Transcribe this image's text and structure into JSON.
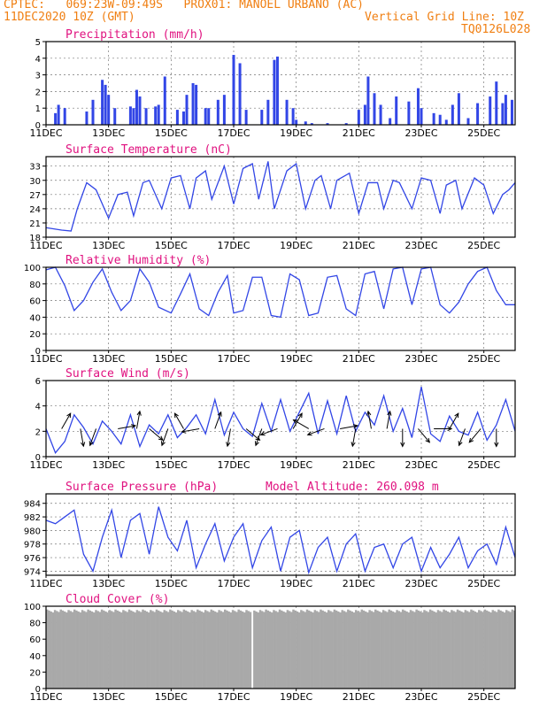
{
  "header": {
    "line1": "CPTEC:   069:23W-09:49S   PROX01: MANOEL URBANO (AC)",
    "line2_left": "11DEC2020 10Z (GMT)",
    "line2_right": "Vertical Grid Line: 10Z",
    "line3_right": "TQ0126L028"
  },
  "colors": {
    "header": "#f07f12",
    "title": "#e0117f",
    "series": "#3246e6",
    "bars": "#3246e6",
    "cloud": "#a9a9a9"
  },
  "x_labels": [
    "11DEC",
    "13DEC",
    "15DEC",
    "17DEC",
    "19DEC",
    "21DEC",
    "23DEC",
    "25DEC"
  ],
  "x_positions_days": [
    0,
    2,
    4,
    6,
    8,
    10,
    12,
    14
  ],
  "x_span_days": 15.0,
  "chart_data": [
    {
      "type": "bar",
      "title": "Precipitation (mm/h)",
      "ylim": [
        0,
        5
      ],
      "yticks": [
        "0",
        "1",
        "2",
        "3",
        "4",
        "5"
      ],
      "x_days": [
        0.3,
        0.4,
        0.6,
        1.3,
        1.5,
        1.8,
        1.9,
        2.0,
        2.2,
        2.7,
        2.8,
        2.9,
        3.0,
        3.2,
        3.5,
        3.6,
        3.8,
        4.2,
        4.4,
        4.5,
        4.7,
        4.8,
        5.1,
        5.2,
        5.5,
        5.7,
        6.0,
        6.2,
        6.4,
        6.9,
        7.1,
        7.3,
        7.4,
        7.7,
        7.9,
        8.0,
        8.3,
        8.5,
        9.0,
        9.6,
        10.0,
        10.2,
        10.3,
        10.5,
        10.7,
        11.0,
        11.2,
        11.6,
        11.9,
        12.0,
        12.4,
        12.6,
        12.8,
        13.0,
        13.2,
        13.5,
        13.8,
        14.2,
        14.4,
        14.6,
        14.7,
        14.9
      ],
      "values": [
        0.7,
        1.2,
        1.0,
        0.8,
        1.5,
        2.7,
        2.4,
        1.8,
        1.0,
        1.1,
        1.0,
        2.1,
        1.7,
        1.0,
        1.1,
        1.2,
        2.9,
        0.9,
        0.8,
        1.8,
        2.5,
        2.4,
        1.0,
        1.0,
        1.5,
        1.8,
        4.2,
        3.7,
        0.9,
        0.9,
        1.5,
        3.9,
        4.1,
        1.5,
        1.0,
        0.3,
        0.2,
        0.1,
        0.1,
        0.1,
        0.9,
        1.2,
        2.9,
        1.9,
        1.2,
        0.4,
        1.7,
        1.4,
        2.2,
        1.0,
        0.7,
        0.6,
        0.3,
        1.2,
        1.9,
        0.4,
        1.3,
        1.7,
        2.6,
        1.3,
        1.8,
        1.5
      ]
    },
    {
      "type": "line",
      "title": "Surface Temperature (nC)",
      "ylim": [
        18,
        35
      ],
      "yticks": [
        "18",
        "21",
        "24",
        "27",
        "30",
        "33"
      ],
      "x_days": [
        0,
        0.5,
        0.8,
        1.0,
        1.3,
        1.6,
        2.0,
        2.3,
        2.6,
        2.8,
        3.1,
        3.3,
        3.7,
        4.0,
        4.3,
        4.6,
        4.8,
        5.1,
        5.3,
        5.7,
        6.0,
        6.3,
        6.6,
        6.8,
        7.1,
        7.3,
        7.7,
        8.0,
        8.3,
        8.6,
        8.8,
        9.1,
        9.3,
        9.7,
        10.0,
        10.3,
        10.6,
        10.8,
        11.1,
        11.3,
        11.7,
        12.0,
        12.3,
        12.6,
        12.8,
        13.1,
        13.3,
        13.7,
        14.0,
        14.3,
        14.6,
        14.8,
        15.0
      ],
      "values": [
        20.0,
        19.5,
        19.3,
        24.0,
        29.5,
        28.0,
        22.0,
        27.0,
        27.5,
        22.5,
        29.5,
        30.0,
        24.0,
        30.5,
        31.0,
        24.0,
        30.5,
        32.0,
        26.0,
        33.0,
        25.0,
        32.5,
        33.5,
        26.0,
        34.0,
        24.0,
        32.0,
        33.5,
        24.0,
        30.0,
        31.0,
        24.0,
        30.0,
        31.5,
        23.0,
        29.5,
        29.5,
        24.0,
        30.0,
        29.5,
        24.0,
        30.5,
        30.0,
        23.0,
        29.0,
        30.0,
        24.0,
        30.5,
        29.0,
        23.0,
        27.0,
        28.0,
        29.5
      ]
    },
    {
      "type": "line",
      "title": "Relative Humidity (%)",
      "ylim": [
        0,
        100
      ],
      "yticks": [
        "0",
        "20",
        "40",
        "60",
        "80",
        "100"
      ],
      "x_days": [
        0,
        0.3,
        0.6,
        0.9,
        1.2,
        1.5,
        1.8,
        2.1,
        2.4,
        2.7,
        3.0,
        3.3,
        3.6,
        4.0,
        4.3,
        4.6,
        4.9,
        5.2,
        5.5,
        5.8,
        6.0,
        6.3,
        6.6,
        6.9,
        7.2,
        7.5,
        7.8,
        8.1,
        8.4,
        8.7,
        9.0,
        9.3,
        9.6,
        9.9,
        10.2,
        10.5,
        10.8,
        11.1,
        11.4,
        11.7,
        12.0,
        12.3,
        12.6,
        12.9,
        13.2,
        13.5,
        13.8,
        14.1,
        14.4,
        14.7,
        15.0
      ],
      "values": [
        97,
        100,
        78,
        48,
        60,
        82,
        98,
        70,
        48,
        60,
        98,
        82,
        52,
        45,
        68,
        92,
        50,
        42,
        70,
        90,
        45,
        48,
        88,
        88,
        42,
        40,
        92,
        85,
        42,
        45,
        88,
        90,
        50,
        42,
        92,
        95,
        50,
        98,
        100,
        55,
        98,
        100,
        55,
        45,
        58,
        80,
        95,
        100,
        72,
        55,
        55
      ]
    },
    {
      "type": "line",
      "title": "Surface Wind (m/s)",
      "ylim": [
        0,
        6
      ],
      "yticks": [
        "0",
        "2",
        "4",
        "6"
      ],
      "x_days": [
        0,
        0.3,
        0.6,
        0.9,
        1.2,
        1.5,
        1.8,
        2.1,
        2.4,
        2.7,
        3.0,
        3.3,
        3.6,
        3.9,
        4.2,
        4.5,
        4.8,
        5.1,
        5.4,
        5.7,
        6.0,
        6.3,
        6.6,
        6.9,
        7.2,
        7.5,
        7.8,
        8.1,
        8.4,
        8.7,
        9.0,
        9.3,
        9.6,
        9.9,
        10.2,
        10.5,
        10.8,
        11.1,
        11.4,
        11.7,
        12.0,
        12.3,
        12.6,
        12.9,
        13.2,
        13.5,
        13.8,
        14.1,
        14.4,
        14.7,
        15.0
      ],
      "values": [
        2.2,
        0.3,
        1.2,
        3.3,
        2.3,
        1.0,
        2.8,
        2.0,
        1.0,
        3.3,
        0.8,
        2.5,
        1.8,
        3.3,
        1.5,
        2.3,
        3.3,
        1.8,
        4.5,
        1.7,
        3.5,
        2.2,
        1.6,
        4.2,
        2.0,
        4.5,
        2.0,
        3.5,
        5.0,
        1.8,
        4.4,
        1.8,
        4.8,
        2.0,
        3.5,
        2.5,
        4.8,
        2.0,
        3.8,
        1.5,
        5.5,
        1.8,
        1.2,
        3.2,
        2.0,
        1.7,
        3.5,
        1.3,
        2.5,
        4.5,
        2.0
      ],
      "arrows_days": [
        0.5,
        1.1,
        1.6,
        2.3,
        2.9,
        3.3,
        3.9,
        4.4,
        4.9,
        5.4,
        5.9,
        6.4,
        6.9,
        7.4,
        7.9,
        8.4,
        8.9,
        9.4,
        9.9,
        10.4,
        10.9,
        11.4,
        11.9,
        12.4,
        12.9,
        13.4,
        13.9,
        14.4
      ],
      "arrows_dir_deg": [
        30,
        170,
        200,
        80,
        10,
        130,
        200,
        330,
        260,
        20,
        190,
        130,
        200,
        250,
        30,
        300,
        250,
        80,
        190,
        350,
        10,
        180,
        140,
        90,
        30,
        200,
        220,
        180
      ]
    },
    {
      "type": "line",
      "title": "Surface Pressure (hPa)",
      "ylim": [
        973.4,
        985.4
      ],
      "yticks": [
        "974",
        "976",
        "978",
        "980",
        "982",
        "984"
      ],
      "model_altitude": "Model Altitude: 260.098 m",
      "x_days": [
        0,
        0.3,
        0.6,
        0.9,
        1.2,
        1.5,
        1.8,
        2.1,
        2.4,
        2.7,
        3.0,
        3.3,
        3.6,
        3.9,
        4.2,
        4.5,
        4.8,
        5.1,
        5.4,
        5.7,
        6.0,
        6.3,
        6.6,
        6.9,
        7.2,
        7.5,
        7.8,
        8.1,
        8.4,
        8.7,
        9.0,
        9.3,
        9.6,
        9.9,
        10.2,
        10.5,
        10.8,
        11.1,
        11.4,
        11.7,
        12.0,
        12.3,
        12.6,
        12.9,
        13.2,
        13.5,
        13.8,
        14.1,
        14.4,
        14.7,
        15.0
      ],
      "values": [
        981.5,
        981.0,
        982.0,
        983.0,
        976.5,
        974.0,
        979.0,
        983.0,
        976.0,
        981.5,
        982.5,
        976.5,
        983.5,
        979.0,
        977.0,
        981.5,
        974.5,
        978.0,
        981.0,
        975.5,
        979.0,
        981.0,
        974.5,
        978.5,
        980.5,
        974.0,
        979.0,
        980.0,
        973.8,
        977.5,
        979.0,
        974.0,
        978.0,
        979.5,
        974.0,
        977.5,
        978.0,
        974.5,
        978.0,
        979.0,
        974.0,
        977.5,
        974.5,
        976.5,
        979.0,
        974.5,
        977.0,
        978.0,
        975.0,
        980.5,
        976.0
      ]
    },
    {
      "type": "bar",
      "title": "Cloud Cover (%)",
      "ylim": [
        0,
        100
      ],
      "yticks": [
        "0",
        "20",
        "40",
        "60",
        "80",
        "100"
      ],
      "base": 96,
      "gap_day": 6.57
    }
  ]
}
